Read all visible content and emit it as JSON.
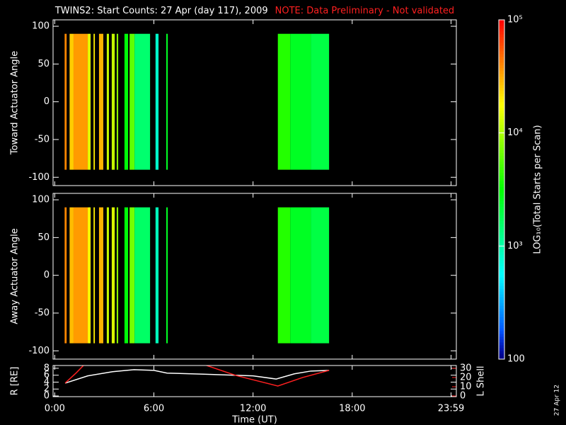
{
  "chart_data": [
    {
      "type": "heatmap",
      "title": "TWINS2: Start Counts: 27 Apr (day 117), 2009",
      "note": "NOTE: Data Preliminary - Not validated",
      "ylabel": "Toward Actuator Angle",
      "xlim": [
        -0.1,
        24.3
      ],
      "ylim": [
        -111,
        108.5
      ],
      "yticks": [
        -100,
        -50,
        0,
        50,
        100
      ],
      "y_range": [
        -90,
        90
      ],
      "x_start": [
        0.6,
        0.9,
        1.14,
        2.0,
        2.35,
        2.68,
        3.15,
        3.45,
        3.75,
        4.22,
        4.53,
        4.83,
        6.1,
        6.75,
        13.5,
        14.25,
        15.5
      ],
      "x_end": [
        0.72,
        1.14,
        2.0,
        2.17,
        2.43,
        2.94,
        3.28,
        3.63,
        3.84,
        4.44,
        4.83,
        5.77,
        6.28,
        6.84,
        14.25,
        15.5,
        16.6
      ],
      "values": [
        40000,
        25000,
        35000,
        15000,
        20000,
        30000,
        12000,
        12000,
        8000,
        3000,
        6000,
        1500,
        800,
        2500,
        4000,
        2500,
        2000
      ]
    },
    {
      "type": "heatmap",
      "ylabel": "Away Actuator Angle",
      "xlim": [
        -0.1,
        24.3
      ],
      "ylim": [
        -111,
        108.5
      ],
      "yticks": [
        -100,
        -50,
        0,
        50,
        100
      ],
      "y_range": [
        -90,
        90
      ],
      "x_start": [
        0.6,
        0.9,
        1.14,
        2.0,
        2.35,
        2.68,
        3.15,
        3.45,
        3.75,
        4.22,
        4.53,
        4.83,
        6.1,
        6.75,
        13.5,
        14.25,
        15.5
      ],
      "x_end": [
        0.72,
        1.14,
        2.0,
        2.17,
        2.43,
        2.94,
        3.28,
        3.63,
        3.84,
        4.44,
        4.83,
        5.77,
        6.28,
        6.84,
        14.25,
        15.5,
        16.6
      ],
      "values": [
        40000,
        28000,
        35000,
        18000,
        20000,
        30000,
        12000,
        14000,
        8000,
        3000,
        7000,
        1600,
        900,
        2500,
        4000,
        2500,
        2000
      ]
    },
    {
      "type": "line",
      "ylabel": "R [RE]",
      "y2label": "L Shell",
      "xlabel": "Time (UT)",
      "xlim": [
        -0.1,
        24.3
      ],
      "xticks": [
        {
          "value": 0,
          "label": "0:00"
        },
        {
          "value": 6,
          "label": "6:00"
        },
        {
          "value": 12,
          "label": "12:00"
        },
        {
          "value": 18,
          "label": "18:00"
        },
        {
          "value": 23.98,
          "label": "23:59"
        }
      ],
      "ylim": [
        -0.2,
        8.8
      ],
      "yticks": [
        0,
        2,
        4,
        6,
        8
      ],
      "y2lim": [
        -0.75,
        33
      ],
      "y2ticks": [
        0,
        10,
        20,
        30
      ],
      "series": [
        {
          "name": "R",
          "color": "#ffffff",
          "x": [
            0.63,
            2,
            3.5,
            4.8,
            6,
            6.8,
            9,
            12,
            13.4,
            14.5,
            15.5,
            16.6
          ],
          "values": [
            3.7,
            5.8,
            7.0,
            7.6,
            7.4,
            6.6,
            6.3,
            5.8,
            4.9,
            6.4,
            7.2,
            7.4
          ]
        },
        {
          "name": "L Shell",
          "color": "#ff2020",
          "axis": "y2",
          "x": [
            0.63,
            1.3,
            1.9,
            null,
            8.7,
            11,
            13.5,
            15,
            16.6
          ],
          "values": [
            14,
            25,
            36,
            null,
            36,
            22,
            10.8,
            20,
            27.7
          ]
        }
      ]
    },
    {
      "type": "colorbar",
      "zlabel": "LOG₁₀(Total Starts per Scan)",
      "log": true,
      "zlim": [
        100,
        100000
      ],
      "zticks": [
        100,
        {
          "value": 1000,
          "label": "10³"
        },
        {
          "value": 10000,
          "label": "10⁴"
        },
        {
          "value": 100000,
          "label": "10⁵"
        }
      ]
    },
    {
      "type": "stamp",
      "text": "27 Apr 12"
    }
  ]
}
